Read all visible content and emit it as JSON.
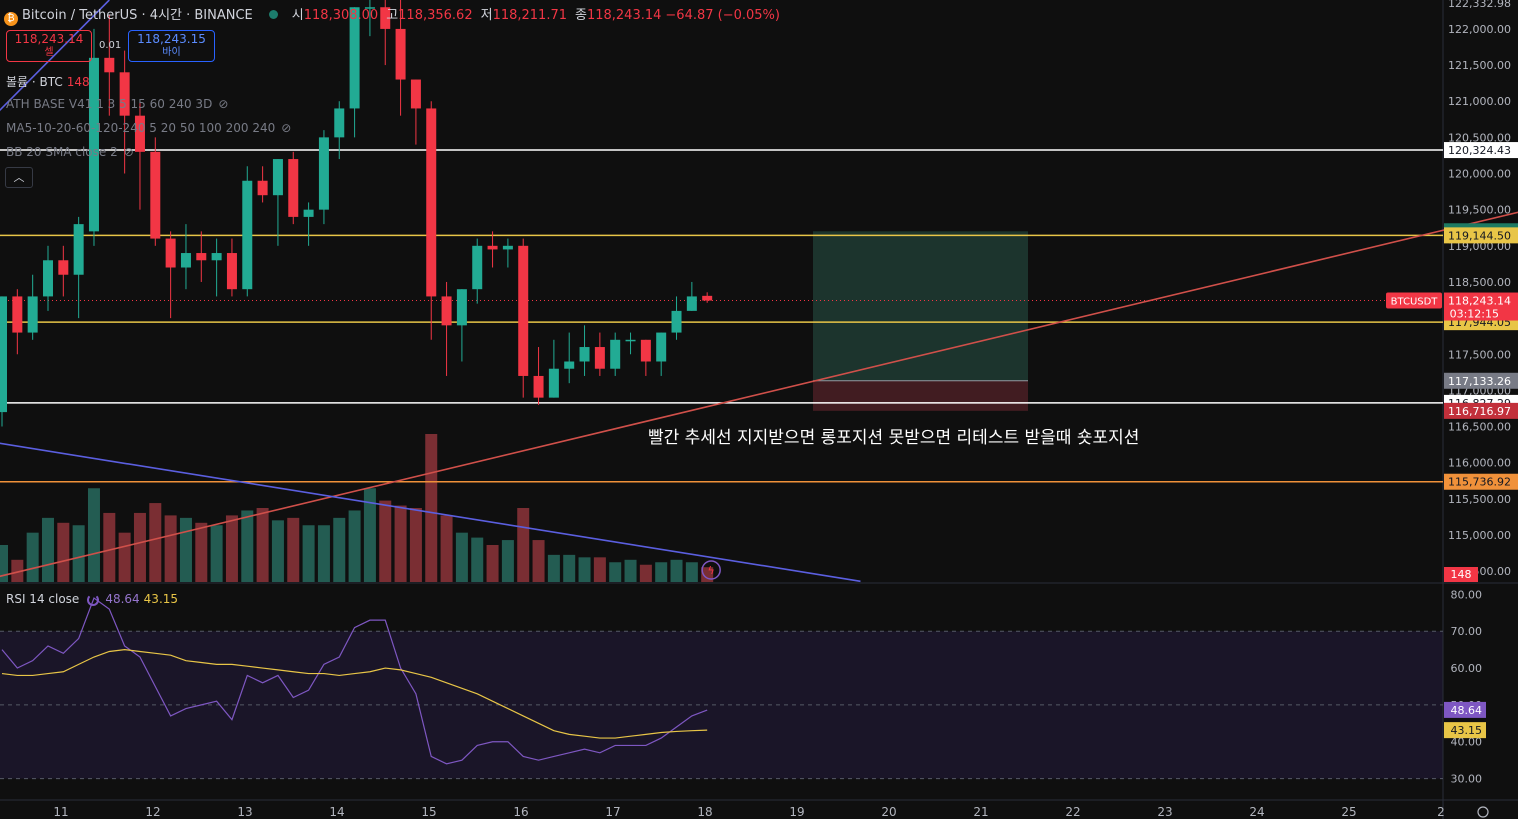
{
  "header": {
    "symbol": "Bitcoin / TetherUS · 4시간 · BINANCE",
    "o_label": "시",
    "o": "118,308.00",
    "h_label": "고",
    "h": "118,356.62",
    "l_label": "저",
    "l": "118,211.71",
    "c_label": "종",
    "c": "118,243.14",
    "change": "−64.87 (−0.05%)"
  },
  "trade": {
    "sell_price": "118,243.14",
    "sell_label": "셀",
    "spread": "0.01",
    "buy_price": "118,243.15",
    "buy_label": "바이"
  },
  "indicators": {
    "volume_label": "볼륨 · BTC",
    "volume_value": "148",
    "ath": "ATH BASE V41 1 3 5 15 60 240 3D",
    "ma": "MA5-10-20-60-120-240 5 20 50 100 200 240",
    "bb": "BB 20 SMA close 2",
    "collapse_icon": "chevron-up-icon"
  },
  "rsi_legend": {
    "label": "RSI 14 close",
    "rsi": "48.64",
    "ma": "43.15"
  },
  "annotation": "빨간 추세선 지지받으면 롱포지션 못받으면 리테스트 받을때 숏포지션",
  "colors": {
    "up": "#22ab94",
    "down": "#f23645",
    "accent": "#2962ff",
    "trendline_red": "#d0504a",
    "trendline_blue": "#5b5fe0"
  },
  "chart_data": {
    "type": "candlestick",
    "timeframe": "4h",
    "price_axis": {
      "ylim": [
        114350,
        122400
      ],
      "ticks": [
        "114,500.00",
        "115,000.00",
        "115,500.00",
        "116,000.00",
        "116,500.00",
        "117,000.00",
        "117,500.00",
        "118,000.00",
        "118,500.00",
        "119,000.00",
        "119,500.00",
        "120,000.00",
        "120,500.00",
        "121,000.00",
        "121,500.00",
        "122,000.00"
      ]
    },
    "top_cut_label": "122,332.98",
    "x_axis": {
      "labels": [
        "11",
        "12",
        "13",
        "14",
        "15",
        "16",
        "17",
        "18",
        "19",
        "20",
        "21",
        "22",
        "23",
        "24",
        "25",
        "2"
      ]
    },
    "candles": [
      {
        "o": 116700,
        "h": 118300,
        "l": 116500,
        "c": 118300
      },
      {
        "o": 118300,
        "h": 118400,
        "l": 117500,
        "c": 117800
      },
      {
        "o": 117800,
        "h": 118600,
        "l": 117700,
        "c": 118300
      },
      {
        "o": 118300,
        "h": 119000,
        "l": 118100,
        "c": 118800
      },
      {
        "o": 118800,
        "h": 119000,
        "l": 118300,
        "c": 118600
      },
      {
        "o": 118600,
        "h": 119400,
        "l": 118000,
        "c": 119300
      },
      {
        "o": 119200,
        "h": 122000,
        "l": 119000,
        "c": 121600
      },
      {
        "o": 121600,
        "h": 122200,
        "l": 120800,
        "c": 121400
      },
      {
        "o": 121400,
        "h": 121700,
        "l": 120000,
        "c": 120800
      },
      {
        "o": 120800,
        "h": 121000,
        "l": 119500,
        "c": 120300
      },
      {
        "o": 120300,
        "h": 120500,
        "l": 119000,
        "c": 119100
      },
      {
        "o": 119100,
        "h": 119200,
        "l": 118000,
        "c": 118700
      },
      {
        "o": 118700,
        "h": 119300,
        "l": 118400,
        "c": 118900
      },
      {
        "o": 118900,
        "h": 119200,
        "l": 118500,
        "c": 118800
      },
      {
        "o": 118800,
        "h": 119100,
        "l": 118300,
        "c": 118900
      },
      {
        "o": 118900,
        "h": 119100,
        "l": 118300,
        "c": 118400
      },
      {
        "o": 118400,
        "h": 120100,
        "l": 118300,
        "c": 119900
      },
      {
        "o": 119900,
        "h": 120100,
        "l": 119600,
        "c": 119700
      },
      {
        "o": 119700,
        "h": 120200,
        "l": 119000,
        "c": 120200
      },
      {
        "o": 120200,
        "h": 120300,
        "l": 119300,
        "c": 119400
      },
      {
        "o": 119400,
        "h": 119600,
        "l": 119000,
        "c": 119500
      },
      {
        "o": 119500,
        "h": 120600,
        "l": 119300,
        "c": 120500
      },
      {
        "o": 120500,
        "h": 121000,
        "l": 120200,
        "c": 120900
      },
      {
        "o": 120900,
        "h": 122300,
        "l": 120500,
        "c": 122300
      },
      {
        "o": 122300,
        "h": 122400,
        "l": 121900,
        "c": 122300
      },
      {
        "o": 122300,
        "h": 122400,
        "l": 121500,
        "c": 122000
      },
      {
        "o": 122000,
        "h": 122400,
        "l": 120800,
        "c": 121300
      },
      {
        "o": 121300,
        "h": 121300,
        "l": 120400,
        "c": 120900
      },
      {
        "o": 120900,
        "h": 121000,
        "l": 117700,
        "c": 118300
      },
      {
        "o": 118300,
        "h": 118500,
        "l": 117200,
        "c": 117900
      },
      {
        "o": 117900,
        "h": 118400,
        "l": 117400,
        "c": 118400
      },
      {
        "o": 118400,
        "h": 119100,
        "l": 118200,
        "c": 119000
      },
      {
        "o": 119000,
        "h": 119200,
        "l": 118700,
        "c": 118950
      },
      {
        "o": 118950,
        "h": 119100,
        "l": 118700,
        "c": 119000
      },
      {
        "o": 119000,
        "h": 119100,
        "l": 116900,
        "c": 117200
      },
      {
        "o": 117200,
        "h": 117600,
        "l": 116800,
        "c": 116900
      },
      {
        "o": 116900,
        "h": 117700,
        "l": 116900,
        "c": 117300
      },
      {
        "o": 117300,
        "h": 117800,
        "l": 117100,
        "c": 117400
      },
      {
        "o": 117400,
        "h": 117900,
        "l": 117200,
        "c": 117600
      },
      {
        "o": 117600,
        "h": 117800,
        "l": 117200,
        "c": 117300
      },
      {
        "o": 117300,
        "h": 117800,
        "l": 117200,
        "c": 117700
      },
      {
        "o": 117700,
        "h": 117800,
        "l": 117500,
        "c": 117700
      },
      {
        "o": 117700,
        "h": 117700,
        "l": 117200,
        "c": 117400
      },
      {
        "o": 117400,
        "h": 117800,
        "l": 117200,
        "c": 117800
      },
      {
        "o": 117800,
        "h": 118300,
        "l": 117700,
        "c": 118100
      },
      {
        "o": 118100,
        "h": 118500,
        "l": 118100,
        "c": 118300
      },
      {
        "o": 118308,
        "h": 118357,
        "l": 118212,
        "c": 118243
      }
    ],
    "volume": [
      150,
      90,
      200,
      260,
      240,
      230,
      380,
      280,
      200,
      280,
      320,
      270,
      260,
      240,
      230,
      270,
      290,
      300,
      250,
      260,
      230,
      230,
      260,
      290,
      380,
      330,
      310,
      300,
      600,
      270,
      200,
      180,
      150,
      170,
      300,
      170,
      110,
      110,
      100,
      100,
      80,
      90,
      70,
      80,
      90,
      80,
      60
    ],
    "volume_marker": "148",
    "horizontal_levels": [
      {
        "price": 120324.43,
        "label": "120,324.43",
        "color": "#ffffff"
      },
      {
        "price": 119144.5,
        "label": "119,144.50",
        "color": "#e8c547"
      },
      {
        "price": 117944.05,
        "label": "117,944.05",
        "color": "#e8c547"
      },
      {
        "price": 116827.29,
        "label": "116,827.29",
        "color": "#ffffff"
      },
      {
        "price": 115736.92,
        "label": "115,736.92",
        "color": "#f0913a"
      }
    ],
    "position_tool": {
      "target_price": 119201.31,
      "target_label": "119,201.31",
      "entry_price": 117133.26,
      "entry_label": "117,133.26",
      "stop_price": 116716.97,
      "stop_label": "116,716.97"
    },
    "current_price": {
      "value": 118243.14,
      "label": "118,243.14",
      "ticker": "BTCUSDT",
      "countdown": "03:12:15"
    },
    "trendlines": [
      {
        "name": "red",
        "from": {
          "i": -1.5,
          "price": 114360
        },
        "to": {
          "i": 100,
          "price": 119520
        }
      },
      {
        "name": "blue",
        "from": {
          "i": -0.5,
          "price": 116280
        },
        "to": {
          "i": 56,
          "price": 114360
        }
      },
      {
        "name": "blue-upper",
        "from": {
          "i": -0.5,
          "price": 120800
        },
        "to": {
          "i": 7,
          "price": 122400
        }
      }
    ],
    "rsi": {
      "ylim": [
        25,
        82
      ],
      "ticks": [
        "30.00",
        "40.00",
        "50.00",
        "60.00",
        "70.00",
        "80.00"
      ],
      "levels": [
        70,
        50,
        30
      ],
      "rsi_values": [
        65,
        60,
        62,
        66,
        64,
        68,
        79,
        76,
        66,
        63,
        55,
        47,
        49,
        50,
        51,
        46,
        58,
        56,
        58,
        52,
        54,
        61,
        63,
        71,
        73,
        73,
        60,
        53,
        36,
        34,
        35,
        39,
        40,
        40,
        36,
        35,
        36,
        37,
        38,
        37,
        39,
        39,
        39,
        41,
        44,
        47,
        48.6
      ],
      "ma_values": [
        58.5,
        58,
        58,
        58.5,
        59,
        61,
        63,
        64.5,
        65,
        64.5,
        64,
        63.5,
        62,
        61.5,
        61,
        61,
        60.5,
        60,
        59.5,
        59,
        58.5,
        58.5,
        58,
        58.5,
        59,
        60,
        59.5,
        58.5,
        57.5,
        56,
        54.5,
        53,
        51,
        49,
        47,
        45,
        43,
        42,
        41.5,
        41,
        41,
        41.5,
        42,
        42.5,
        42.8,
        43,
        43.15
      ],
      "rsi_label": "48.64",
      "ma_label": "43.15"
    }
  }
}
